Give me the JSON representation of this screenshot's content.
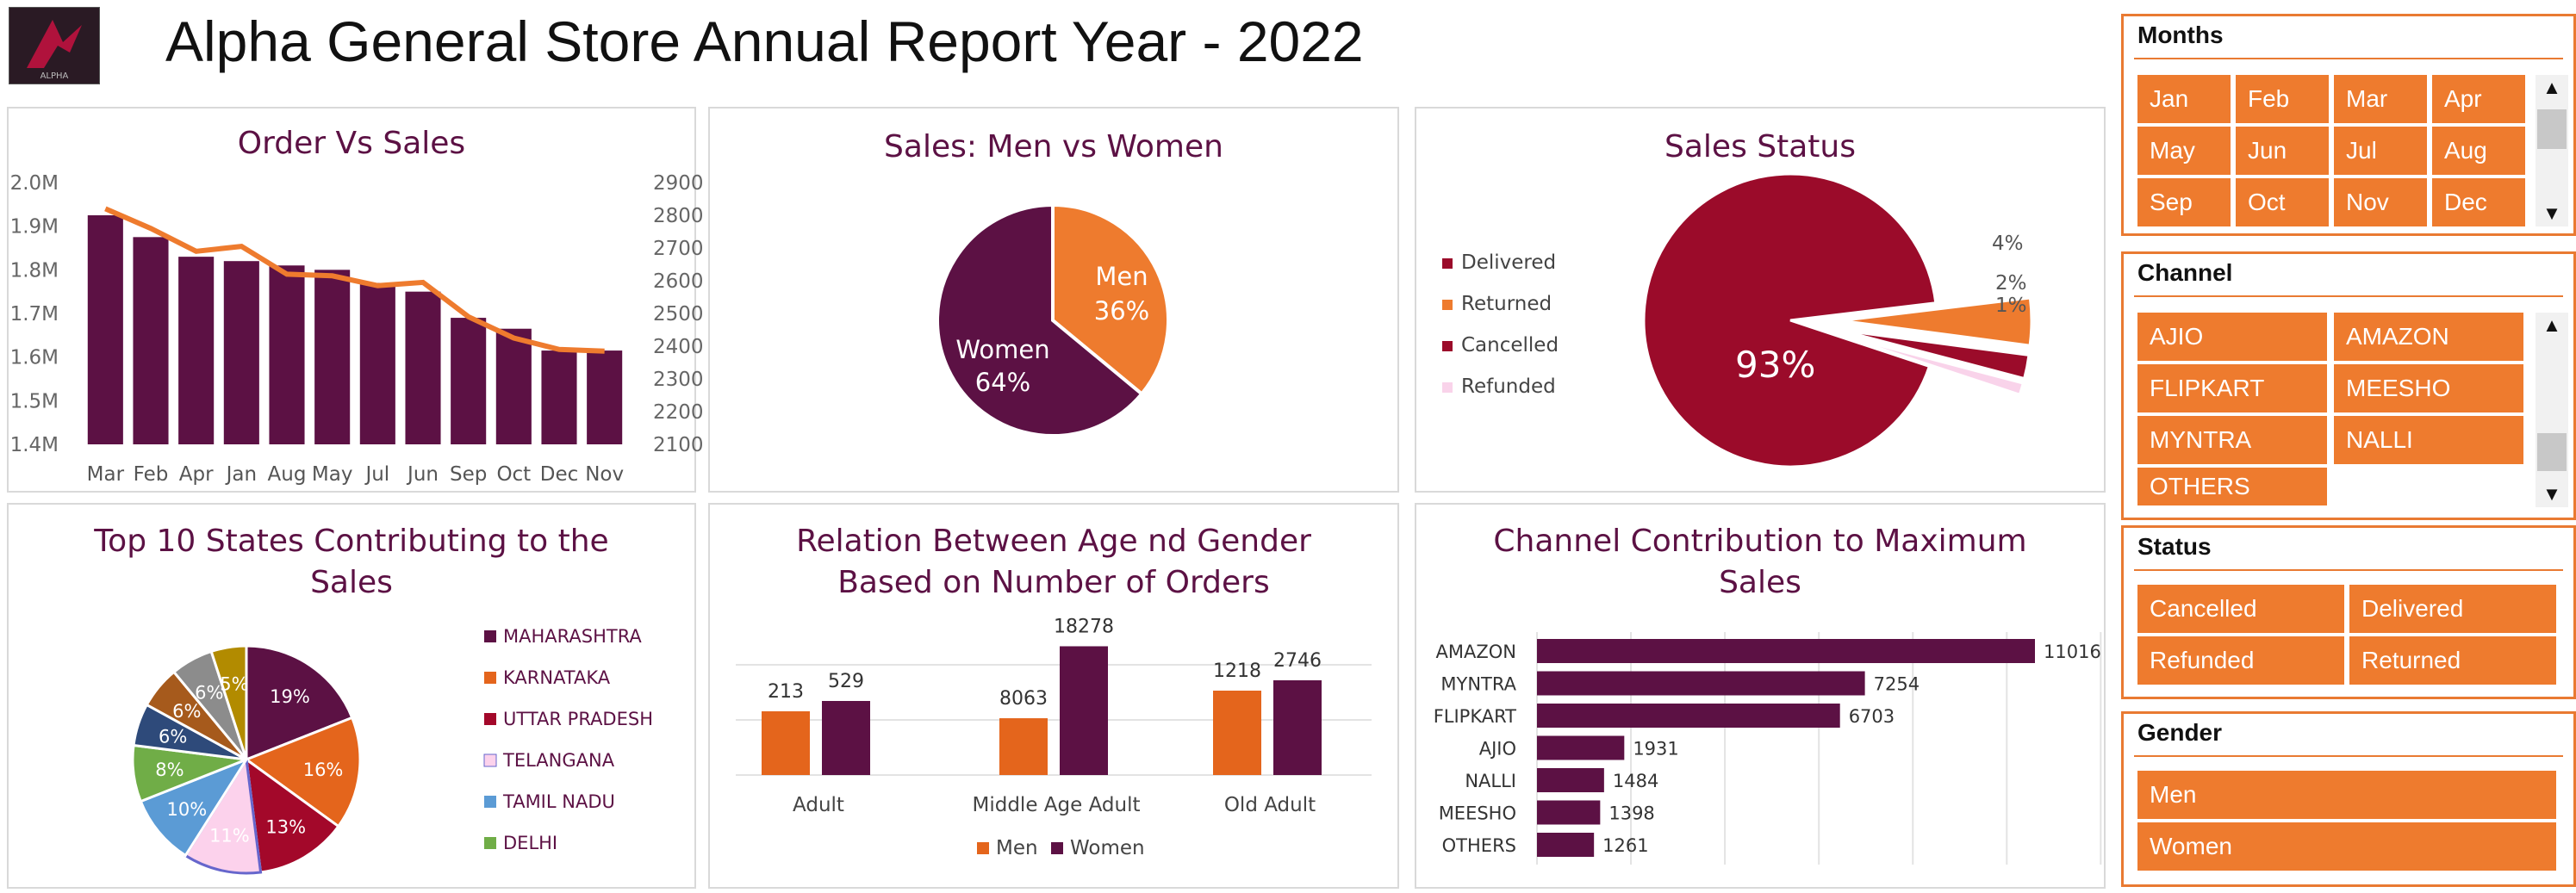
{
  "title": "Alpha General Store Annual Report Year - 2022",
  "logo": {
    "text": "ALPHA"
  },
  "colors": {
    "primary": "#5c1144",
    "orange": "#ee7b2e",
    "red": "#9b0b2a",
    "pink": "#f9d3ea",
    "slicer_orange": "#ee7b2e"
  },
  "charts": {
    "order_vs_sales": {
      "title": "Order Vs Sales",
      "type": "bar",
      "categories": [
        "Mar",
        "Feb",
        "Apr",
        "Jan",
        "Aug",
        "May",
        "Jul",
        "Jun",
        "Sep",
        "Oct",
        "Dec",
        "Nov"
      ],
      "left_ticks": [
        "2.0M",
        "1.9M",
        "1.8M",
        "1.7M",
        "1.6M",
        "1.5M",
        "1.4M"
      ],
      "right_ticks": [
        "2900",
        "2800",
        "2700",
        "2600",
        "2500",
        "2400",
        "2300",
        "2200",
        "2100"
      ],
      "sales": [
        1.925,
        1.875,
        1.83,
        1.82,
        1.81,
        1.8,
        1.77,
        1.75,
        1.69,
        1.665,
        1.615,
        1.615
      ],
      "orders": [
        2820,
        2760,
        2690,
        2705,
        2620,
        2615,
        2585,
        2595,
        2490,
        2425,
        2390,
        2385
      ],
      "ylim_left": [
        1.4,
        2.0
      ],
      "ylim_right": [
        2100,
        2900
      ]
    },
    "men_women": {
      "title": "Sales: Men vs Women",
      "type": "pie",
      "slices": [
        {
          "name": "Men",
          "pct": "36%",
          "value": 36
        },
        {
          "name": "Women",
          "pct": "64%",
          "value": 64
        }
      ]
    },
    "sales_status": {
      "title": "Sales Status",
      "type": "pie",
      "legend": [
        "Delivered",
        "Returned",
        "Cancelled",
        "Refunded"
      ],
      "values": [
        93,
        4,
        2,
        1
      ],
      "labels": [
        "93%",
        "4%",
        "2%",
        "1%"
      ]
    },
    "top_states": {
      "title_line1": "Top 10 States Contributing to the",
      "title_line2": "Sales",
      "type": "pie",
      "legend": [
        "MAHARASHTRA",
        "KARNATAKA",
        "UTTAR PRADESH",
        "TELANGANA",
        "TAMIL NADU",
        "DELHI"
      ],
      "values": [
        19,
        16,
        13,
        11,
        10,
        8,
        6,
        6,
        6,
        5
      ],
      "labels": [
        "19%",
        "16%",
        "13%",
        "11%",
        "10%",
        "8%",
        "6%",
        "6%",
        "6%",
        "5%"
      ]
    },
    "age_gender": {
      "title_line1": "Relation Between Age nd Gender",
      "title_line2": "Based on Number of Orders",
      "type": "bar",
      "categories": [
        "Adult",
        "Middle Age Adult",
        "Old Adult"
      ],
      "series": [
        {
          "name": "Men",
          "values": [
            213,
            8063,
            1218
          ],
          "labels": [
            "213",
            "8063",
            "1218"
          ]
        },
        {
          "name": "Women",
          "values": [
            529,
            18278,
            2746
          ],
          "labels": [
            "529",
            "18278",
            "2746"
          ]
        }
      ]
    },
    "channel_contribution": {
      "title_line1": "Channel Contribution to Maximum",
      "title_line2": "Sales",
      "type": "bar",
      "categories": [
        "AMAZON",
        "MYNTRA",
        "FLIPKART",
        "AJIO",
        "NALLI",
        "MEESHO",
        "OTHERS"
      ],
      "values": [
        11016,
        7254,
        6703,
        1931,
        1484,
        1398,
        1261
      ],
      "labels": [
        "11016",
        "7254",
        "6703",
        "1931",
        "1484",
        "1398",
        "1261"
      ]
    }
  },
  "slicers": {
    "months": {
      "header": "Months",
      "items": [
        "Jan",
        "Feb",
        "Mar",
        "Apr",
        "May",
        "Jun",
        "Jul",
        "Aug",
        "Sep",
        "Oct",
        "Nov",
        "Dec"
      ]
    },
    "channel": {
      "header": "Channel",
      "items": [
        "AJIO",
        "AMAZON",
        "FLIPKART",
        "MEESHO",
        "MYNTRA",
        "NALLI",
        "OTHERS"
      ]
    },
    "status": {
      "header": "Status",
      "items": [
        "Cancelled",
        "Delivered",
        "Refunded",
        "Returned"
      ]
    },
    "gender": {
      "header": "Gender",
      "items": [
        "Men",
        "Women"
      ]
    }
  }
}
